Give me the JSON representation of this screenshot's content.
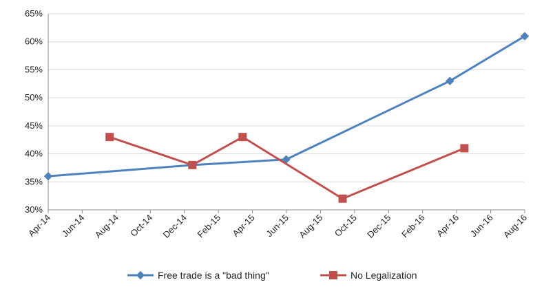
{
  "chart_data": {
    "type": "line",
    "x_axis": {
      "type": "date",
      "min": "2014-04-01",
      "max": "2016-08-01",
      "tick_labels": [
        "Apr-14",
        "Jun-14",
        "Aug-14",
        "Oct-14",
        "Dec-14",
        "Feb-15",
        "Apr-15",
        "Jun-15",
        "Aug-15",
        "Oct-15",
        "Dec-15",
        "Feb-16",
        "Apr-16",
        "Jun-16",
        "Aug-16"
      ]
    },
    "y_axis": {
      "min": 0.3,
      "max": 0.65,
      "step": 0.05,
      "tick_labels": [
        "30%",
        "35%",
        "40%",
        "45%",
        "50%",
        "55%",
        "60%",
        "65%"
      ]
    },
    "grid": "horizontal",
    "legend_position": "bottom",
    "series": [
      {
        "name": "Free trade is a \"bad thing\"",
        "color": "#4f81bd",
        "marker": "diamond",
        "points": [
          {
            "x": "2014-04-01",
            "y": 0.36
          },
          {
            "x": "2014-12-15",
            "y": 0.38
          },
          {
            "x": "2015-06-01",
            "y": 0.39
          },
          {
            "x": "2016-03-20",
            "y": 0.53
          },
          {
            "x": "2016-08-01",
            "y": 0.61
          }
        ]
      },
      {
        "name": "No Legalization",
        "color": "#c0504d",
        "marker": "square",
        "points": [
          {
            "x": "2014-07-20",
            "y": 0.43
          },
          {
            "x": "2014-12-15",
            "y": 0.38
          },
          {
            "x": "2015-03-15",
            "y": 0.43
          },
          {
            "x": "2015-09-10",
            "y": 0.32
          },
          {
            "x": "2016-04-15",
            "y": 0.41
          }
        ]
      }
    ]
  }
}
